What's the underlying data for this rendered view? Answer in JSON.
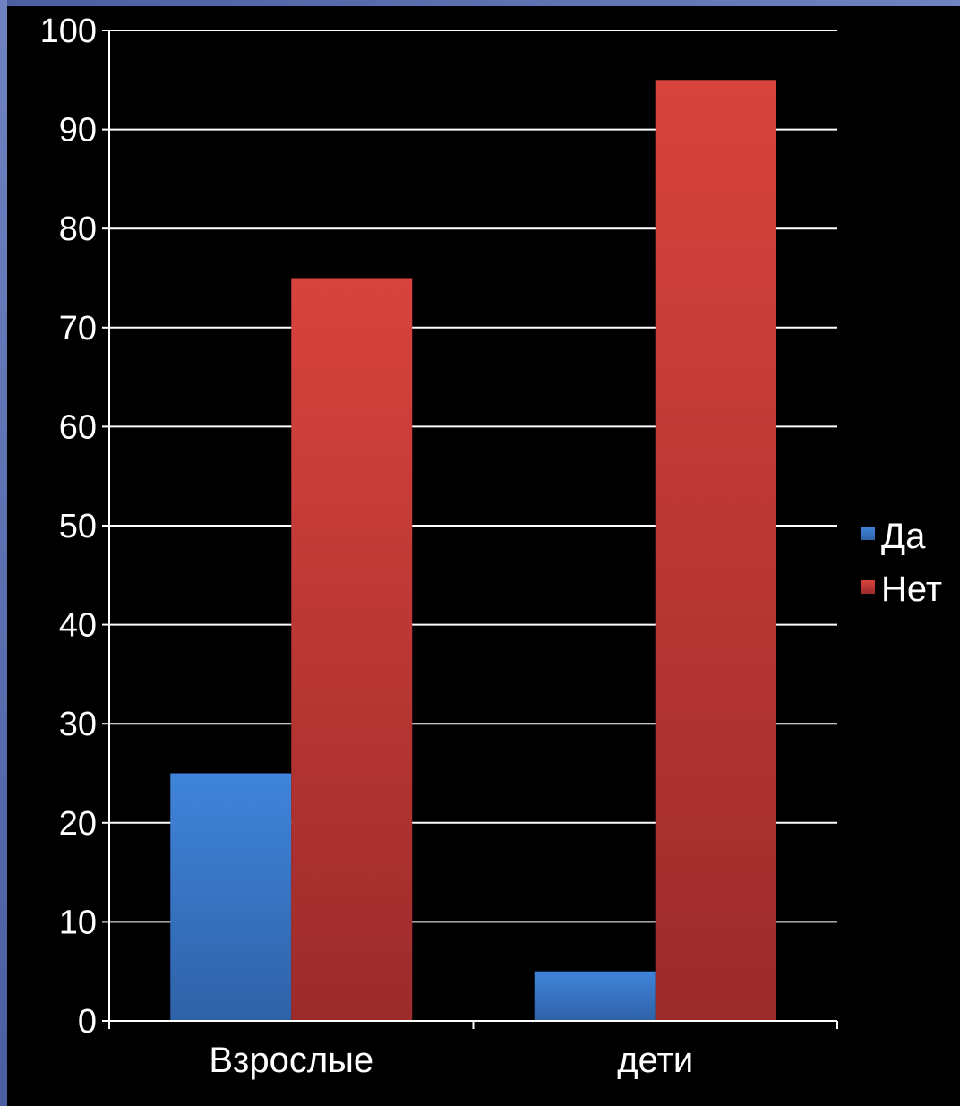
{
  "chart_data": {
    "type": "bar",
    "categories": [
      "Взрослые",
      "дети"
    ],
    "series": [
      {
        "name": "Да",
        "values": [
          25,
          5
        ]
      },
      {
        "name": "Нет",
        "values": [
          75,
          95
        ]
      }
    ],
    "yticks": [
      "0",
      "10",
      "20",
      "30",
      "40",
      "50",
      "60",
      "70",
      "80",
      "90",
      "100"
    ],
    "ylim": [
      0,
      100
    ],
    "grid": true,
    "legend_position": "right",
    "colors": {
      "background": "#000000",
      "series_da": "#3a7bd0",
      "series_net": "#d03c38",
      "grid": "#ffffff",
      "frame": "#5a6fb0"
    }
  }
}
